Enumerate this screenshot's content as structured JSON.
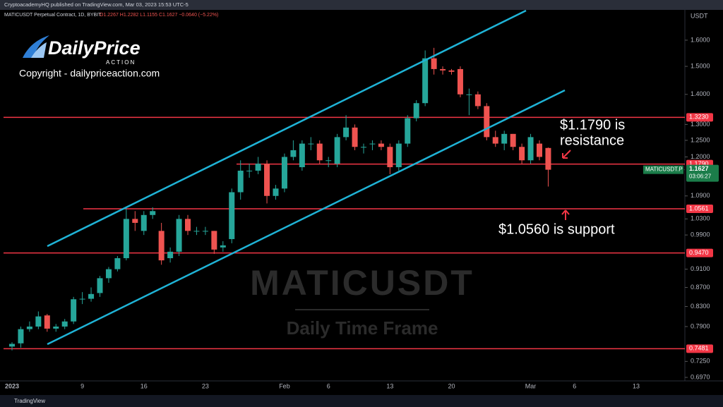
{
  "header": {
    "published": "CryptoacademyHQ published on TradingView.com, Mar 03, 2023 15:53 UTC-5",
    "symbol_info": "MATICUSDT Perpetual Contract, 1D, BYBIT",
    "ohlc": "O1.2267 H1.2282 L1.1155 C1.1627 −0.0640 (−5.22%)"
  },
  "logo": {
    "name": "DailyPrice",
    "tagline": "ACTION",
    "copyright": "Copyright - dailypriceaction.com"
  },
  "footer": "TradingView",
  "chart_data": {
    "type": "candlestick",
    "currency": "USDT",
    "watermark": "MATICUSDT",
    "subtitle": "Daily Time Frame",
    "categories": [
      "2023",
      null,
      null,
      null,
      null,
      null,
      null,
      null,
      "9",
      null,
      null,
      null,
      null,
      null,
      null,
      "16",
      null,
      null,
      null,
      null,
      null,
      null,
      "23",
      null,
      null,
      null,
      null,
      null,
      null,
      null,
      null,
      "Feb",
      null,
      null,
      null,
      null,
      "6",
      null,
      null,
      null,
      null,
      null,
      null,
      "13",
      null,
      null,
      null,
      null,
      null,
      null,
      "20",
      null,
      null,
      null,
      null,
      null,
      null,
      null,
      null,
      "Mar",
      null,
      null,
      null,
      null,
      "6",
      null,
      null,
      null,
      null,
      null,
      null,
      "13",
      null,
      null,
      null,
      null
    ],
    "open": [
      0.752,
      0.758,
      0.785,
      0.79,
      0.812,
      0.786,
      0.79,
      0.8,
      0.845,
      0.846,
      0.858,
      0.89,
      0.91,
      0.935,
      1.03,
      1.0,
      1.04,
      1.0,
      0.935,
      0.95,
      1.03,
      1.0,
      1.0,
      1.0,
      0.96,
      0.98,
      1.1,
      1.16,
      1.16,
      1.18,
      1.09,
      1.11,
      1.2,
      1.17,
      1.24,
      1.24,
      1.19,
      1.18,
      1.26,
      1.29,
      1.23,
      1.24,
      1.24,
      1.23,
      1.17,
      1.24,
      1.32,
      1.37,
      1.53,
      1.49,
      1.485,
      1.49,
      1.4,
      1.4,
      1.36,
      1.26,
      1.24,
      1.27,
      1.23,
      1.19,
      1.24,
      1.2267,
      null,
      null,
      null,
      null,
      null,
      null,
      null,
      null,
      null,
      null,
      null,
      null,
      null,
      null
    ],
    "high": [
      0.76,
      0.79,
      0.8,
      0.82,
      0.815,
      0.795,
      0.805,
      0.85,
      0.86,
      0.87,
      0.895,
      0.915,
      0.94,
      1.06,
      1.05,
      1.05,
      1.06,
      1.02,
      0.96,
      1.04,
      1.04,
      1.01,
      1.01,
      1.0,
      0.975,
      1.11,
      1.19,
      1.18,
      1.2,
      1.19,
      1.12,
      1.21,
      1.25,
      1.25,
      1.26,
      1.25,
      1.2,
      1.27,
      1.33,
      1.3,
      1.24,
      1.25,
      1.25,
      1.24,
      1.25,
      1.33,
      1.38,
      1.56,
      1.57,
      1.5,
      1.49,
      1.5,
      1.42,
      1.41,
      1.37,
      1.28,
      1.28,
      1.27,
      1.24,
      1.27,
      1.25,
      1.2282,
      null,
      null,
      null,
      null,
      null,
      null,
      null,
      null,
      null,
      null,
      null,
      null,
      null,
      null
    ],
    "low": [
      0.745,
      0.75,
      0.78,
      0.785,
      0.78,
      0.78,
      0.785,
      0.795,
      0.835,
      0.84,
      0.85,
      0.88,
      0.905,
      0.93,
      1.0,
      0.99,
      1.03,
      0.92,
      0.925,
      0.94,
      0.99,
      0.99,
      0.99,
      0.945,
      0.95,
      0.97,
      1.08,
      1.14,
      1.15,
      1.07,
      1.08,
      1.1,
      1.19,
      1.16,
      1.22,
      1.18,
      1.17,
      1.17,
      1.25,
      1.22,
      1.21,
      1.22,
      1.22,
      1.15,
      1.16,
      1.23,
      1.31,
      1.36,
      1.47,
      1.47,
      1.47,
      1.39,
      1.33,
      1.35,
      1.25,
      1.23,
      1.22,
      1.22,
      1.18,
      1.18,
      1.19,
      1.1155,
      null,
      null,
      null,
      null,
      null,
      null,
      null,
      null,
      null,
      null,
      null,
      null,
      null,
      null
    ],
    "close": [
      0.757,
      0.785,
      0.79,
      0.81,
      0.786,
      0.79,
      0.8,
      0.845,
      0.846,
      0.856,
      0.89,
      0.91,
      0.935,
      1.03,
      1.02,
      1.04,
      1.05,
      0.93,
      0.95,
      1.03,
      1.0,
      1.0,
      1.0,
      0.955,
      0.965,
      1.1,
      1.16,
      1.16,
      1.18,
      1.09,
      1.11,
      1.2,
      1.22,
      1.24,
      1.24,
      1.19,
      1.19,
      1.26,
      1.29,
      1.23,
      1.23,
      1.24,
      1.23,
      1.17,
      1.24,
      1.32,
      1.37,
      1.53,
      1.49,
      1.485,
      1.48,
      1.4,
      1.4,
      1.36,
      1.26,
      1.24,
      1.27,
      1.23,
      1.19,
      1.26,
      1.2,
      1.1627,
      null,
      null,
      null,
      null,
      null,
      null,
      null,
      null,
      null,
      null,
      null,
      null,
      null,
      null
    ],
    "up_color": "#26a69a",
    "down_color": "#ef5350",
    "log_scale": true,
    "ylim": [
      0.691,
      1.724
    ],
    "yticks": [
      {
        "value": 1.6,
        "label": "1.6000"
      },
      {
        "value": 1.5,
        "label": "1.5000"
      },
      {
        "value": 1.4,
        "label": "1.4000"
      },
      {
        "value": 1.3,
        "label": "1.3000"
      },
      {
        "value": 1.25,
        "label": "1.2500"
      },
      {
        "value": 1.2,
        "label": "1.2000"
      },
      {
        "value": 1.09,
        "label": "1.0900"
      },
      {
        "value": 1.03,
        "label": "1.0300"
      },
      {
        "value": 0.99,
        "label": "0.9900"
      },
      {
        "value": 0.91,
        "label": "0.9100"
      },
      {
        "value": 0.87,
        "label": "0.8700"
      },
      {
        "value": 0.83,
        "label": "0.8300"
      },
      {
        "value": 0.79,
        "label": "0.7900"
      },
      {
        "value": 0.725,
        "label": "0.7250"
      },
      {
        "value": 0.697,
        "label": "0.6970"
      }
    ],
    "levels": {
      "color": "#f23645",
      "values": [
        {
          "value": 1.323,
          "label": "1.3230"
        },
        {
          "value": 1.179,
          "label": "1.1790"
        },
        {
          "value": 1.0561,
          "label": "1.0561"
        },
        {
          "value": 0.947,
          "label": "0.9470"
        },
        {
          "value": 0.7481,
          "label": "0.7481"
        }
      ]
    },
    "annotations": {
      "resistance": [
        "$1.1790 is",
        "resistance"
      ],
      "support": "$1.0560 is support"
    },
    "last_price": {
      "name": "MATICUSDT.P",
      "value": 1.1627,
      "countdown": "03:06:27",
      "color": "#1b7d4a"
    }
  }
}
